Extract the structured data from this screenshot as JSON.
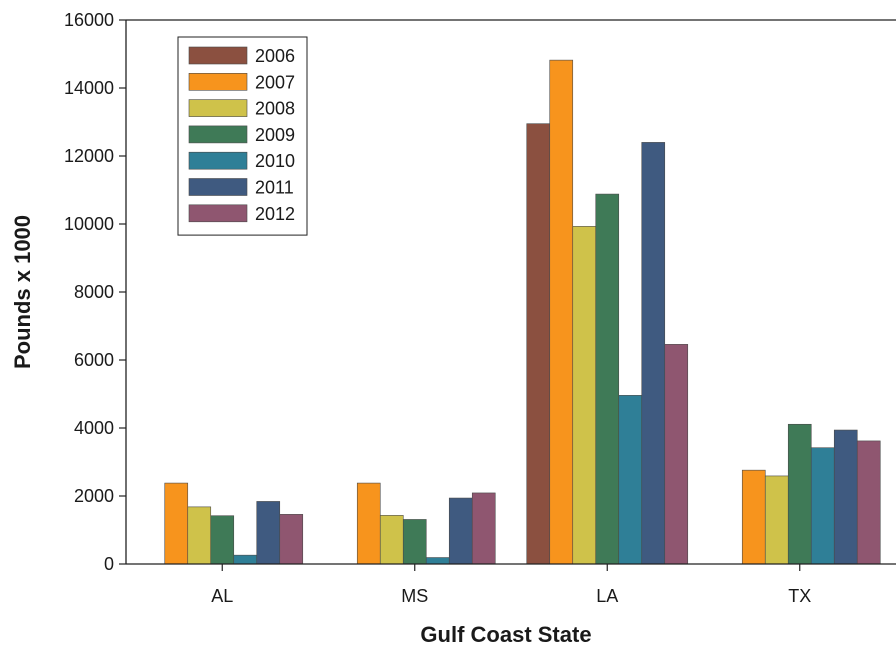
{
  "chart_data": {
    "type": "bar",
    "title": "",
    "xlabel": "Gulf Coast State",
    "ylabel": "Pounds x 1000",
    "categories": [
      "AL",
      "MS",
      "LA",
      "TX"
    ],
    "ylim": [
      0,
      16000
    ],
    "yticks": [
      "0",
      "2000",
      "4000",
      "6000",
      "8000",
      "10000",
      "12000",
      "14000",
      "16000"
    ],
    "legend_position": "top-left",
    "grid": false,
    "series": [
      {
        "name": "2006",
        "color": "#8b5040",
        "values": [
          0,
          0,
          12950,
          0
        ]
      },
      {
        "name": "2007",
        "color": "#f7941d",
        "values": [
          2380,
          2380,
          14820,
          2760
        ]
      },
      {
        "name": "2008",
        "color": "#cfc24a",
        "values": [
          1680,
          1430,
          9930,
          2590
        ]
      },
      {
        "name": "2009",
        "color": "#3f7a57",
        "values": [
          1420,
          1310,
          10880,
          4110
        ]
      },
      {
        "name": "2010",
        "color": "#2f7f97",
        "values": [
          260,
          190,
          4960,
          3420
        ]
      },
      {
        "name": "2011",
        "color": "#3f5a80",
        "values": [
          1840,
          1940,
          12400,
          3940
        ]
      },
      {
        "name": "2012",
        "color": "#8f5670",
        "values": [
          1460,
          2090,
          6460,
          3620
        ]
      }
    ]
  }
}
